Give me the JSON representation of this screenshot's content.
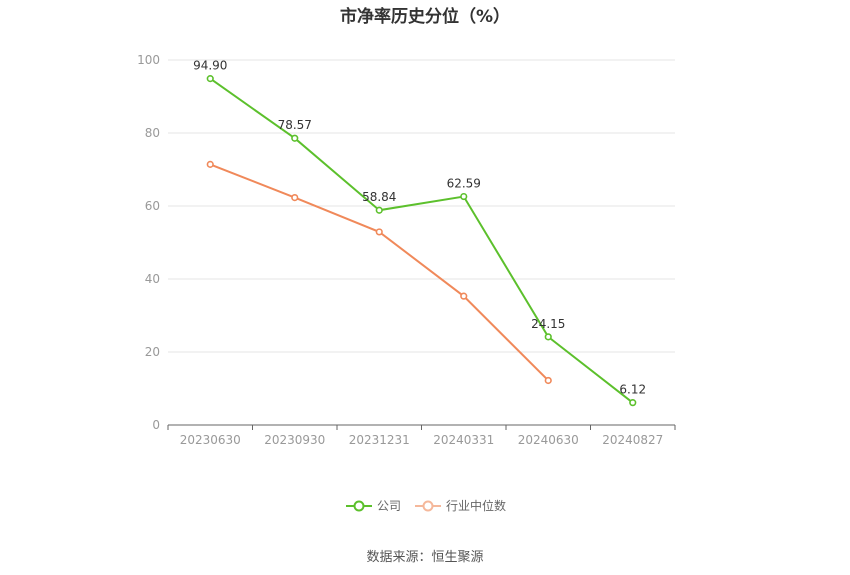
{
  "colors": {
    "company": "#5cc02c",
    "industry": "#f0895a",
    "grid": "#e6e6e6",
    "axis": "#666666",
    "tick_text": "#999999",
    "label_text": "#333333"
  },
  "source_note": "数据来源：恒生聚源",
  "chart_data": {
    "type": "line",
    "title": "市净率历史分位（%）",
    "xlabel": "",
    "ylabel": "",
    "categories": [
      "20230630",
      "20230930",
      "20231231",
      "20240331",
      "20240630",
      "20240827"
    ],
    "ylim": [
      0,
      100
    ],
    "yticks": [
      0,
      20,
      40,
      60,
      80,
      100
    ],
    "grid": true,
    "legend_position": "bottom",
    "series": [
      {
        "name": "公司",
        "values": [
          94.9,
          78.57,
          58.84,
          62.59,
          24.15,
          6.12
        ],
        "labels": [
          "94.90",
          "78.57",
          "58.84",
          "62.59",
          "24.15",
          "6.12"
        ]
      },
      {
        "name": "行业中位数",
        "values": [
          71.4,
          62.3,
          52.9,
          35.3,
          12.2,
          null
        ],
        "labels": []
      }
    ]
  }
}
